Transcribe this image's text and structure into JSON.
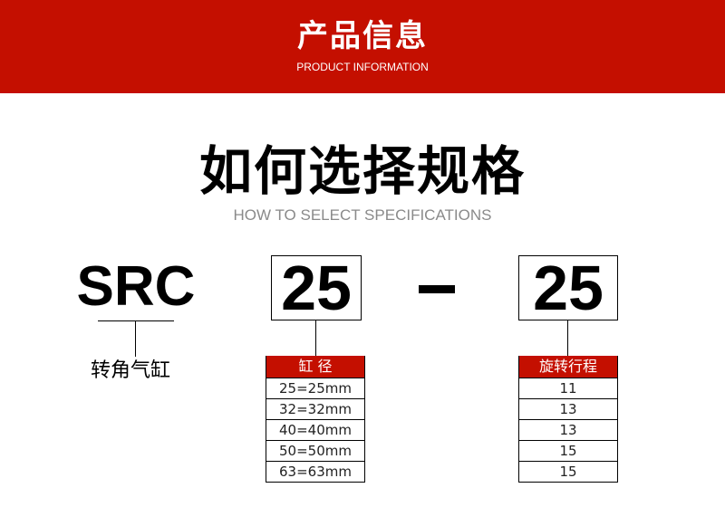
{
  "header": {
    "title": "产品信息",
    "subtitle": "PRODUCT INFORMATION"
  },
  "section": {
    "title": "如何选择规格",
    "subtitle": "HOW TO SELECT SPECIFICATIONS"
  },
  "model": {
    "code": "SRC",
    "label": "转角气缸"
  },
  "bore": {
    "value": "25",
    "header": "缸 径",
    "options": [
      "25=25mm",
      "32=32mm",
      "40=40mm",
      "50=50mm",
      "63=63mm"
    ]
  },
  "stroke": {
    "value": "25",
    "header": "旋转行程",
    "options": [
      "11",
      "13",
      "13",
      "15",
      "15"
    ]
  },
  "colors": {
    "accent": "#c40f00"
  }
}
